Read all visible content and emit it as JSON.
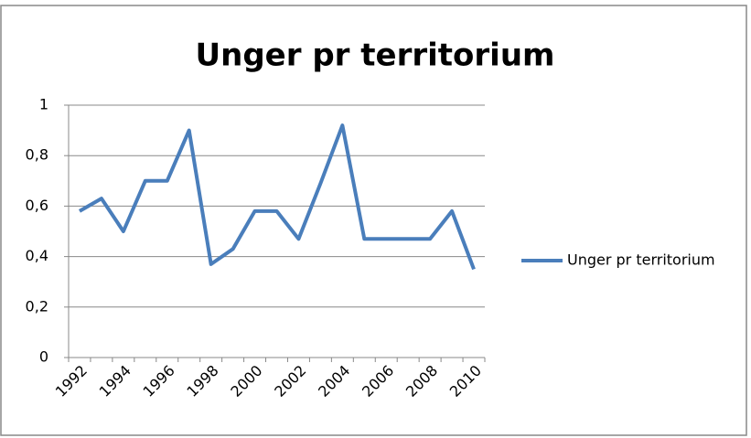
{
  "chart_data": {
    "type": "line",
    "title": "Unger pr territorium",
    "categories": [
      "1992",
      null,
      "1994",
      null,
      "1996",
      null,
      "1998",
      null,
      "2000",
      null,
      "2002",
      null,
      "2004",
      null,
      "2006",
      null,
      "2008",
      null,
      "2010"
    ],
    "series": [
      {
        "name": "Unger pr territorium",
        "color": "#4a7ebb",
        "values": [
          0.58,
          0.63,
          0.5,
          0.7,
          0.7,
          0.9,
          0.37,
          0.43,
          0.58,
          0.58,
          0.47,
          0.69,
          0.92,
          0.47,
          0.47,
          0.47,
          0.47,
          0.58,
          0.35
        ]
      }
    ],
    "ylim": [
      0,
      1
    ],
    "yticks": [
      0,
      {
        "value": 0.2,
        "label": "0,2"
      },
      {
        "value": 0.4,
        "label": "0,4"
      },
      {
        "value": 0.6,
        "label": "0,6"
      },
      {
        "value": 0.8,
        "label": "0,8"
      },
      1
    ],
    "grid": true,
    "legend": "right"
  }
}
